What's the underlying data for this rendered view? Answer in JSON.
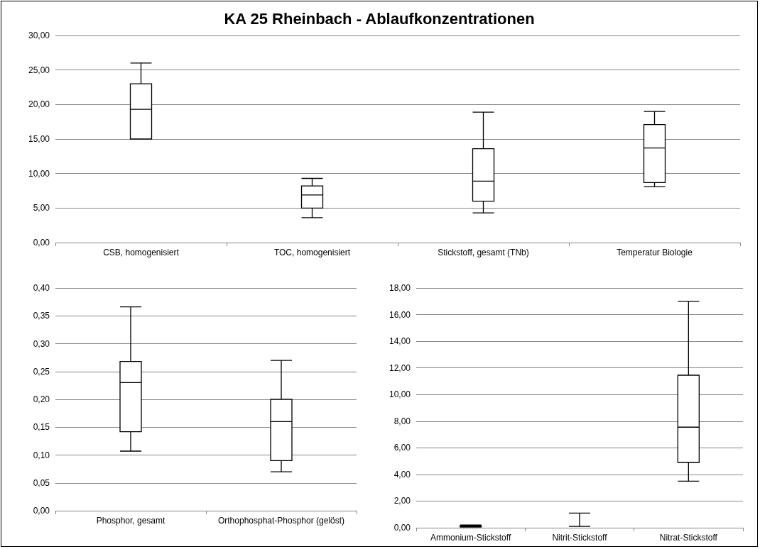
{
  "chart_data": [
    {
      "type": "box",
      "title": "KA 25 Rheinbach - Ablaufkonzentrationen",
      "categories": [
        "CSB, homogenisiert",
        "TOC, homogenisiert",
        "Stickstoff, gesamt (TNb)",
        "Temperatur Biologie"
      ],
      "boxes": [
        {
          "low": 15,
          "q1": 15,
          "median": 19.3,
          "q3": 23,
          "high": 26
        },
        {
          "low": 3.6,
          "q1": 5,
          "median": 6.9,
          "q3": 8.2,
          "high": 9.3
        },
        {
          "low": 4.3,
          "q1": 6,
          "median": 8.9,
          "q3": 13.6,
          "high": 18.9
        },
        {
          "low": 8.1,
          "q1": 8.7,
          "median": 13.7,
          "q3": 17.1,
          "high": 19
        }
      ],
      "color": "#000000",
      "ylim": [
        0,
        30
      ],
      "yticks": [
        {
          "value": 0,
          "label": "0,00"
        },
        {
          "value": 5,
          "label": "5,00"
        },
        {
          "value": 10,
          "label": "10,00"
        },
        {
          "value": 15,
          "label": "15,00"
        },
        {
          "value": 20,
          "label": "20,00"
        },
        {
          "value": 25,
          "label": "25,00"
        },
        {
          "value": 30,
          "label": "30,00"
        }
      ],
      "grid": "y"
    },
    {
      "type": "box",
      "categories": [
        "Phosphor, gesamt",
        "Orthophosphat-Phosphor (gelöst)"
      ],
      "boxes": [
        {
          "low": 0.107,
          "q1": 0.142,
          "median": 0.23,
          "q3": 0.268,
          "high": 0.366
        },
        {
          "low": 0.07,
          "q1": 0.09,
          "median": 0.16,
          "q3": 0.2,
          "high": 0.27
        }
      ],
      "color": "#000000",
      "ylim": [
        0,
        0.4
      ],
      "yticks": [
        {
          "value": 0,
          "label": "0,00"
        },
        {
          "value": 0.05,
          "label": "0,05"
        },
        {
          "value": 0.1,
          "label": "0,10"
        },
        {
          "value": 0.15,
          "label": "0,15"
        },
        {
          "value": 0.2,
          "label": "0,20"
        },
        {
          "value": 0.25,
          "label": "0,25"
        },
        {
          "value": 0.3,
          "label": "0,30"
        },
        {
          "value": 0.35,
          "label": "0,35"
        },
        {
          "value": 0.4,
          "label": "0,40"
        }
      ],
      "grid": "y"
    },
    {
      "type": "box",
      "categories": [
        "Ammonium-Stickstoff",
        "Nitrit-Stickstoff",
        "Nitrat-Stickstoff"
      ],
      "boxes": [
        {
          "low": 0.05,
          "q1": 0.08,
          "median": 0.1,
          "q3": 0.12,
          "high": 0.2
        },
        {
          "low": 0.1,
          "q1": 0.1,
          "median": 0.1,
          "q3": 0.1,
          "high": 1.1
        },
        {
          "low": 3.5,
          "q1": 4.9,
          "median": 7.55,
          "q3": 11.45,
          "high": 17
        }
      ],
      "color": "#000000",
      "ylim": [
        0,
        18
      ],
      "yticks": [
        {
          "value": 0,
          "label": "0,00"
        },
        {
          "value": 2,
          "label": "2,00"
        },
        {
          "value": 4,
          "label": "4,00"
        },
        {
          "value": 6,
          "label": "6,00"
        },
        {
          "value": 8,
          "label": "8,00"
        },
        {
          "value": 10,
          "label": "10,00"
        },
        {
          "value": 12,
          "label": "12,00"
        },
        {
          "value": 14,
          "label": "14,00"
        },
        {
          "value": 16,
          "label": "16,00"
        },
        {
          "value": 18,
          "label": "18,00"
        }
      ],
      "grid": "y"
    }
  ]
}
